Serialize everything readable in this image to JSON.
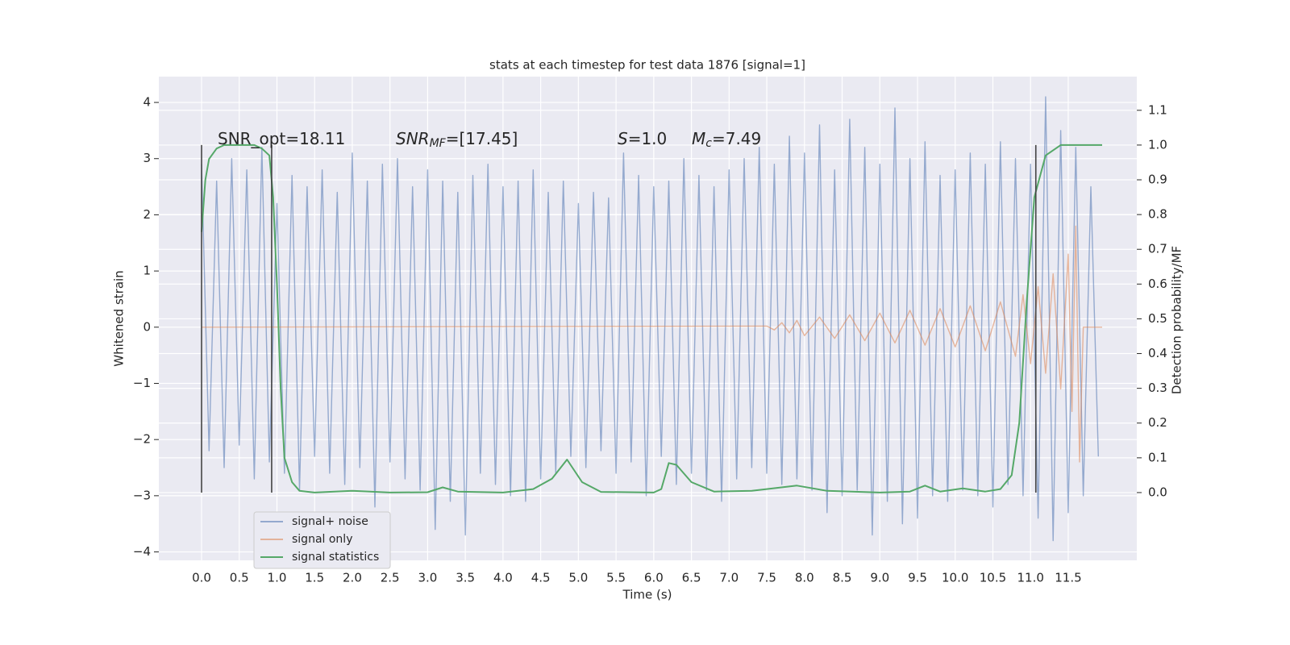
{
  "chart_data": {
    "type": "line",
    "title": "stats at each timestep for test data 1876 [signal=1]",
    "xlabel": "Time (s)",
    "ylabel": "Whitened strain",
    "y2label": "Detection probability/MF",
    "xlim": [
      -0.567,
      12.41
    ],
    "ylim": [
      -4.15,
      4.46
    ],
    "y2lim": [
      -0.195,
      1.197
    ],
    "xticks": [
      {
        "value": 0,
        "label": "0.0"
      },
      0.5,
      {
        "value": 1,
        "label": "1.0"
      },
      1.5,
      {
        "value": 2,
        "label": "2.0"
      },
      2.5,
      {
        "value": 3,
        "label": "3.0"
      },
      3.5,
      {
        "value": 4,
        "label": "4.0"
      },
      4.5,
      {
        "value": 5,
        "label": "5.0"
      },
      5.5,
      {
        "value": 6,
        "label": "6.0"
      },
      6.5,
      {
        "value": 7,
        "label": "7.0"
      },
      7.5,
      {
        "value": 8,
        "label": "8.0"
      },
      8.5,
      {
        "value": 9,
        "label": "9.0"
      },
      9.5,
      {
        "value": 10,
        "label": "10.0"
      },
      10.5,
      {
        "value": 11,
        "label": "11.0"
      },
      11.5
    ],
    "yticks": [
      {
        "value": -4,
        "label": "−4"
      },
      {
        "value": -3,
        "label": "−3"
      },
      {
        "value": -2,
        "label": "−2"
      },
      {
        "value": -1,
        "label": "−1"
      },
      0,
      1,
      2,
      3,
      4
    ],
    "y2ticks": [
      {
        "value": 0,
        "label": "0.0"
      },
      0.1,
      0.2,
      0.3,
      0.4,
      0.5,
      0.6,
      0.7,
      0.8,
      0.9,
      {
        "value": 1,
        "label": "1.0"
      },
      1.1
    ],
    "grid": true,
    "legend": "lower left",
    "annotations": [
      {
        "parts": [
          "SNR_opt=18.11"
        ]
      },
      {
        "parts": [
          "SNR",
          "MF",
          "=[17.45]"
        ]
      },
      {
        "parts": [
          "S",
          "=1.0"
        ]
      },
      {
        "parts": [
          "M",
          "c",
          "=7.49"
        ]
      }
    ],
    "vlines": {
      "x": [
        0,
        0.93,
        11.07
      ],
      "ymin": 0,
      "ymax": 1.0,
      "color": "#444444"
    },
    "series": [
      {
        "name": "signal+ noise",
        "color": "#4c72b0",
        "x": [
          0,
          0.1,
          0.2,
          0.3,
          0.4,
          0.5,
          0.6,
          0.7,
          0.8,
          0.9,
          1.0,
          1.1,
          1.2,
          1.3,
          1.4,
          1.5,
          1.6,
          1.7,
          1.8,
          1.9,
          2.0,
          2.1,
          2.2,
          2.3,
          2.4,
          2.5,
          2.6,
          2.7,
          2.8,
          2.9,
          3.0,
          3.1,
          3.2,
          3.3,
          3.4,
          3.5,
          3.6,
          3.7,
          3.8,
          3.9,
          4.0,
          4.1,
          4.2,
          4.3,
          4.4,
          4.5,
          4.6,
          4.7,
          4.8,
          4.9,
          5.0,
          5.1,
          5.2,
          5.3,
          5.4,
          5.5,
          5.6,
          5.7,
          5.8,
          5.9,
          6.0,
          6.1,
          6.2,
          6.3,
          6.4,
          6.5,
          6.6,
          6.7,
          6.8,
          6.9,
          7.0,
          7.1,
          7.2,
          7.3,
          7.4,
          7.5,
          7.6,
          7.7,
          7.8,
          7.9,
          8.0,
          8.1,
          8.2,
          8.3,
          8.4,
          8.5,
          8.6,
          8.7,
          8.8,
          8.9,
          9.0,
          9.1,
          9.2,
          9.3,
          9.4,
          9.5,
          9.6,
          9.7,
          9.8,
          9.9,
          10.0,
          10.1,
          10.2,
          10.3,
          10.4,
          10.5,
          10.6,
          10.7,
          10.8,
          10.9,
          11.0,
          11.1,
          11.2,
          11.3,
          11.4,
          11.5,
          11.6,
          11.7,
          11.8,
          11.9
        ],
        "values": [
          2.9,
          -2.2,
          2.6,
          -2.5,
          3.0,
          -2.1,
          2.8,
          -2.7,
          3.2,
          -2.4,
          2.2,
          -2.6,
          2.7,
          -2.9,
          2.5,
          -2.3,
          2.8,
          -2.6,
          2.4,
          -2.8,
          3.1,
          -2.5,
          2.6,
          -3.2,
          2.9,
          -2.4,
          3.0,
          -2.7,
          2.5,
          -2.9,
          2.8,
          -3.6,
          2.6,
          -3.1,
          2.4,
          -3.7,
          2.7,
          -2.6,
          2.9,
          -2.8,
          2.5,
          -3.0,
          2.6,
          -3.1,
          2.8,
          -2.7,
          2.4,
          -2.6,
          2.6,
          -2.3,
          2.2,
          -2.5,
          2.4,
          -2.2,
          2.3,
          -2.6,
          3.1,
          -2.4,
          2.7,
          -3.0,
          2.5,
          -2.3,
          2.6,
          -2.8,
          3.0,
          -2.6,
          2.7,
          -2.9,
          2.5,
          -3.1,
          2.8,
          -2.7,
          3.0,
          -2.5,
          3.2,
          -2.6,
          2.9,
          -2.8,
          3.4,
          -2.7,
          3.1,
          -2.9,
          3.6,
          -3.3,
          2.8,
          -3.0,
          3.7,
          -2.9,
          3.2,
          -3.7,
          2.9,
          -3.1,
          3.9,
          -3.5,
          3.0,
          -3.4,
          3.3,
          -3.0,
          2.7,
          -3.1,
          2.8,
          -2.9,
          3.1,
          -3.0,
          2.9,
          -3.2,
          3.3,
          -2.8,
          3.0,
          -3.0,
          2.9,
          -3.4,
          4.1,
          -3.8,
          3.5,
          -3.3,
          3.2,
          -3.0,
          2.5,
          -2.3
        ]
      },
      {
        "name": "signal only",
        "color": "#dd8452",
        "x": [
          0,
          7.5,
          7.6,
          7.7,
          7.8,
          7.9,
          8.0,
          8.2,
          8.4,
          8.6,
          8.8,
          9.0,
          9.2,
          9.4,
          9.6,
          9.8,
          10.0,
          10.2,
          10.4,
          10.6,
          10.8,
          10.9,
          11.0,
          11.1,
          11.2,
          11.3,
          11.4,
          11.5,
          11.55,
          11.6,
          11.65,
          11.7,
          11.95
        ],
        "values": [
          0,
          0.02,
          -0.05,
          0.08,
          -0.1,
          0.12,
          -0.15,
          0.18,
          -0.2,
          0.22,
          -0.24,
          0.25,
          -0.28,
          0.3,
          -0.32,
          0.33,
          -0.35,
          0.38,
          -0.42,
          0.45,
          -0.52,
          0.58,
          -0.65,
          0.72,
          -0.82,
          0.95,
          -1.1,
          1.3,
          -1.5,
          1.8,
          -2.4,
          0,
          0
        ]
      },
      {
        "name": "signal statistics",
        "color": "#55a868",
        "axis": "y2",
        "x": [
          0,
          0.05,
          0.1,
          0.2,
          0.3,
          0.5,
          0.7,
          0.8,
          0.9,
          0.95,
          1.0,
          1.05,
          1.1,
          1.2,
          1.3,
          1.5,
          2.0,
          2.5,
          3.0,
          3.2,
          3.4,
          4.0,
          4.4,
          4.65,
          4.85,
          5.05,
          5.3,
          6.0,
          6.1,
          6.2,
          6.3,
          6.5,
          6.8,
          7.3,
          7.5,
          7.9,
          8.3,
          9.0,
          9.4,
          9.6,
          9.8,
          10.1,
          10.4,
          10.6,
          10.75,
          10.85,
          10.95,
          11.05,
          11.2,
          11.4,
          11.6,
          11.95
        ],
        "values": [
          0.75,
          0.9,
          0.96,
          0.99,
          1.0,
          1.0,
          1.0,
          0.99,
          0.97,
          0.85,
          0.6,
          0.3,
          0.1,
          0.03,
          0.005,
          0,
          0.005,
          0,
          0.001,
          0.015,
          0.003,
          0,
          0.01,
          0.04,
          0.095,
          0.03,
          0.002,
          0,
          0.01,
          0.085,
          0.08,
          0.03,
          0.003,
          0.005,
          0.01,
          0.02,
          0.005,
          0,
          0.003,
          0.02,
          0.003,
          0.012,
          0.003,
          0.01,
          0.05,
          0.2,
          0.55,
          0.85,
          0.97,
          1.0,
          1.0,
          1.0
        ]
      }
    ]
  }
}
